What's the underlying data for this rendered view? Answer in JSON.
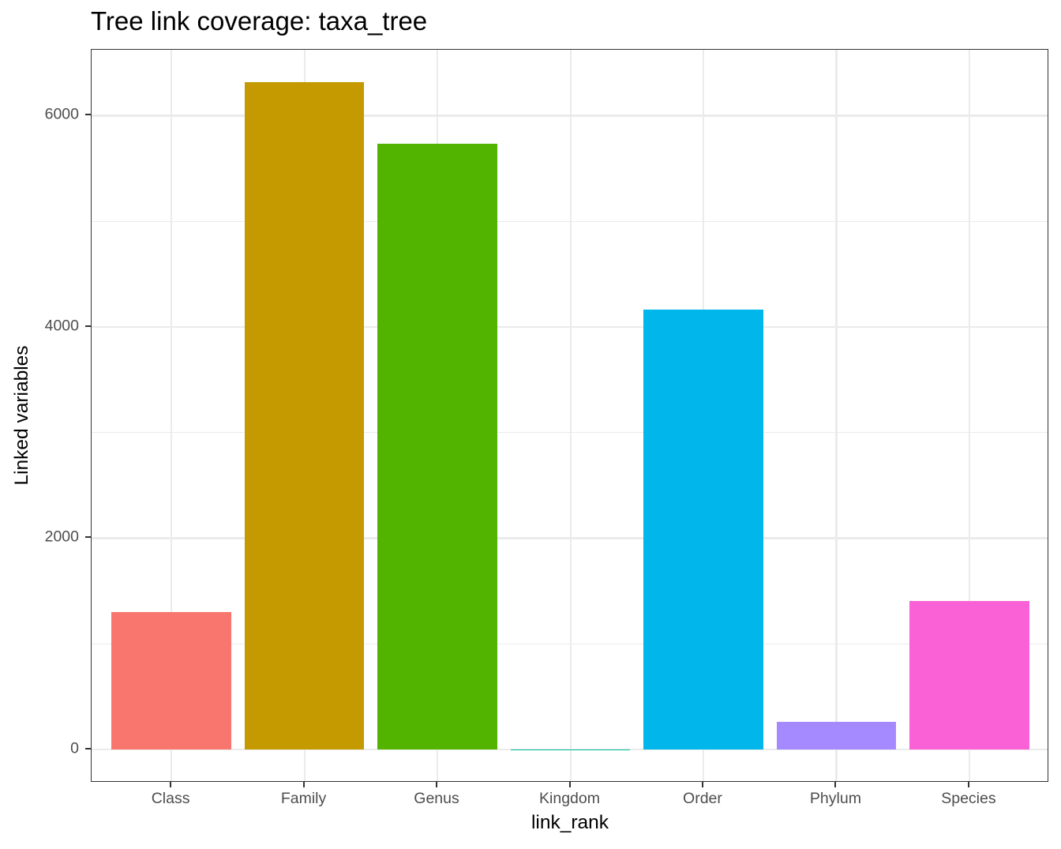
{
  "chart_data": {
    "type": "bar",
    "title": "Tree link coverage: taxa_tree",
    "xlabel": "link_rank",
    "ylabel": "Linked variables",
    "categories": [
      "Class",
      "Family",
      "Genus",
      "Kingdom",
      "Order",
      "Phylum",
      "Species"
    ],
    "values": [
      1300,
      6318,
      5735,
      2,
      4164,
      262,
      1406
    ],
    "colors": [
      "#F8766D",
      "#C49A00",
      "#53B400",
      "#00C094",
      "#00B6EB",
      "#A58AFF",
      "#FB61D7"
    ],
    "yticks": [
      0,
      2000,
      4000,
      6000
    ],
    "ytick_labels": [
      "0",
      "2000",
      "4000",
      "6000"
    ],
    "ylim": [
      -314,
      6624
    ],
    "grid": true,
    "legend": "none",
    "theme": "bw"
  }
}
